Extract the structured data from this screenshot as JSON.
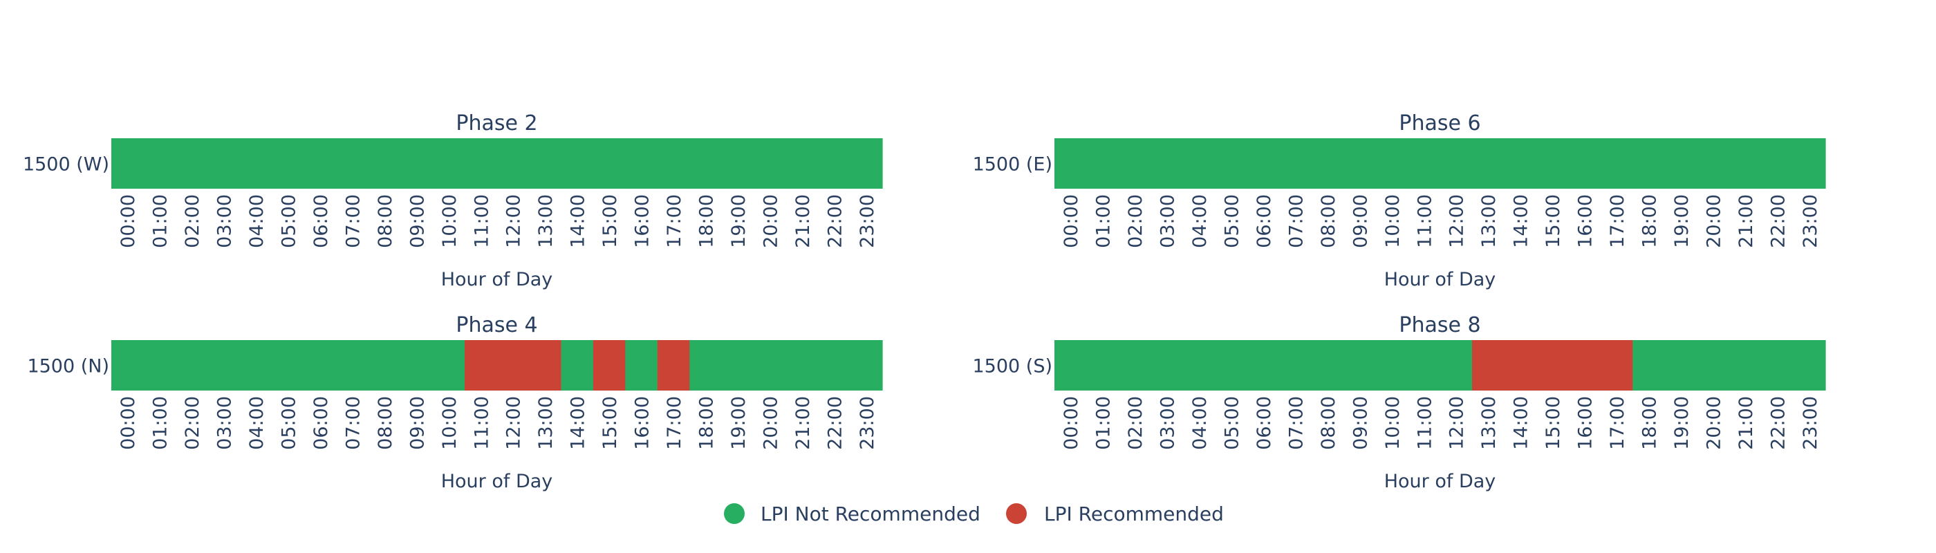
{
  "colors": {
    "not_recommended": "#27ae60",
    "recommended": "#cb4335",
    "text": "#2a3f5f"
  },
  "legend": {
    "items": [
      {
        "label": "LPI Not Recommended",
        "color": "#27ae60"
      },
      {
        "label": "LPI Recommended",
        "color": "#cb4335"
      }
    ]
  },
  "chart_data": [
    {
      "type": "heatmap",
      "title": "Phase 2",
      "row_label": "1500 (W)",
      "xlabel": "Hour of Day",
      "hours": [
        "00:00",
        "01:00",
        "02:00",
        "03:00",
        "04:00",
        "05:00",
        "06:00",
        "07:00",
        "08:00",
        "09:00",
        "10:00",
        "11:00",
        "12:00",
        "13:00",
        "14:00",
        "15:00",
        "16:00",
        "17:00",
        "18:00",
        "19:00",
        "20:00",
        "21:00",
        "22:00",
        "23:00"
      ],
      "values": [
        0,
        0,
        0,
        0,
        0,
        0,
        0,
        0,
        0,
        0,
        0,
        0,
        0,
        0,
        0,
        0,
        0,
        0,
        0,
        0,
        0,
        0,
        0,
        0
      ]
    },
    {
      "type": "heatmap",
      "title": "Phase 6",
      "row_label": "1500 (E)",
      "xlabel": "Hour of Day",
      "hours": [
        "00:00",
        "01:00",
        "02:00",
        "03:00",
        "04:00",
        "05:00",
        "06:00",
        "07:00",
        "08:00",
        "09:00",
        "10:00",
        "11:00",
        "12:00",
        "13:00",
        "14:00",
        "15:00",
        "16:00",
        "17:00",
        "18:00",
        "19:00",
        "20:00",
        "21:00",
        "22:00",
        "23:00"
      ],
      "values": [
        0,
        0,
        0,
        0,
        0,
        0,
        0,
        0,
        0,
        0,
        0,
        0,
        0,
        0,
        0,
        0,
        0,
        0,
        0,
        0,
        0,
        0,
        0,
        0
      ]
    },
    {
      "type": "heatmap",
      "title": "Phase 4",
      "row_label": "1500 (N)",
      "xlabel": "Hour of Day",
      "hours": [
        "00:00",
        "01:00",
        "02:00",
        "03:00",
        "04:00",
        "05:00",
        "06:00",
        "07:00",
        "08:00",
        "09:00",
        "10:00",
        "11:00",
        "12:00",
        "13:00",
        "14:00",
        "15:00",
        "16:00",
        "17:00",
        "18:00",
        "19:00",
        "20:00",
        "21:00",
        "22:00",
        "23:00"
      ],
      "values": [
        0,
        0,
        0,
        0,
        0,
        0,
        0,
        0,
        0,
        0,
        0,
        1,
        1,
        1,
        0,
        1,
        0,
        1,
        0,
        0,
        0,
        0,
        0,
        0
      ]
    },
    {
      "type": "heatmap",
      "title": "Phase 8",
      "row_label": "1500 (S)",
      "xlabel": "Hour of Day",
      "hours": [
        "00:00",
        "01:00",
        "02:00",
        "03:00",
        "04:00",
        "05:00",
        "06:00",
        "07:00",
        "08:00",
        "09:00",
        "10:00",
        "11:00",
        "12:00",
        "13:00",
        "14:00",
        "15:00",
        "16:00",
        "17:00",
        "18:00",
        "19:00",
        "20:00",
        "21:00",
        "22:00",
        "23:00"
      ],
      "values": [
        0,
        0,
        0,
        0,
        0,
        0,
        0,
        0,
        0,
        0,
        0,
        0,
        0,
        1,
        1,
        1,
        1,
        1,
        0,
        0,
        0,
        0,
        0,
        0
      ]
    }
  ]
}
